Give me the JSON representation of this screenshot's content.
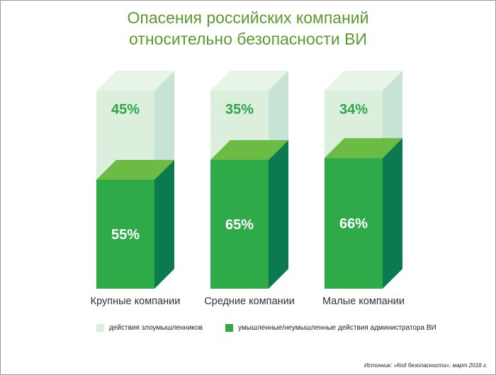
{
  "title_line1": "Опасения российских компаний",
  "title_line2": "относительно безопасности ВИ",
  "source": "Источник: «Код безопасности», март 2018 г.",
  "colors": {
    "title": "#5c9a2e",
    "light_front": "#dcefdc",
    "light_side": "#c6e3d6",
    "light_top": "#e8f4e6",
    "light_label": "#2ea54a",
    "green_front": "#2faa49",
    "green_side": "#0c7a4f",
    "green_top": "#6cbb45",
    "green_label": "#ffffff"
  },
  "chart_data": {
    "type": "bar",
    "stacked": true,
    "three_d": true,
    "categories": [
      "Крупные компании",
      "Средние компании",
      "Малые компании"
    ],
    "series": [
      {
        "name": "умышленные/неумышленные действия администратора ВИ",
        "values": [
          55,
          65,
          66
        ],
        "labels": [
          "55%",
          "65%",
          "66%"
        ]
      },
      {
        "name": "действия злоумышленников",
        "values": [
          45,
          35,
          34
        ],
        "labels": [
          "45%",
          "35%",
          "34%"
        ]
      }
    ],
    "ylim": [
      0,
      100
    ],
    "legend": "bottom"
  }
}
